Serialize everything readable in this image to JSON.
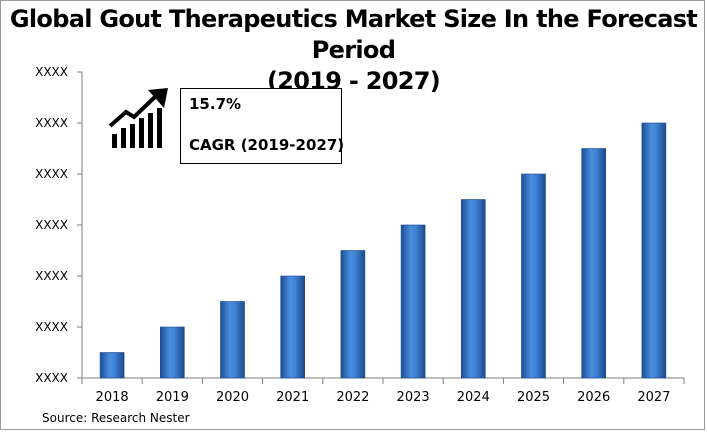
{
  "chart_data": {
    "type": "bar",
    "title_line1": "Global Gout Therapeutics Market Size In the Forecast Period",
    "title_line2": "(2019 - 2027)",
    "categories": [
      "2018",
      "2019",
      "2020",
      "2021",
      "2022",
      "2023",
      "2024",
      "2025",
      "2026",
      "2027"
    ],
    "values": [
      1,
      2,
      3,
      4,
      5,
      6,
      7,
      8,
      9,
      10
    ],
    "ylim": [
      0,
      12
    ],
    "yticks": [
      0,
      2,
      4,
      6,
      8,
      10,
      12
    ],
    "ytick_labels": [
      "XXXX",
      "XXXX",
      "XXXX",
      "XXXX",
      "XXXX",
      "XXXX",
      "XXXX"
    ],
    "xlabel": "",
    "ylabel": "",
    "grid": false,
    "bar_color": "#2f6fc0",
    "annotation": {
      "value": "15.7%",
      "label": "CAGR (2019-2027)",
      "icon": "growth-chart-arrow-icon"
    }
  },
  "source": "Source: Research Nester"
}
